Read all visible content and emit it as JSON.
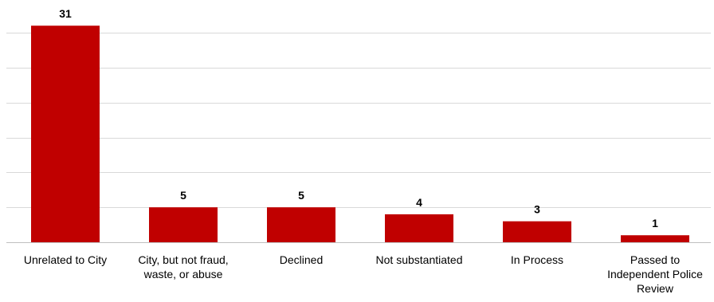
{
  "chart_data": {
    "type": "bar",
    "title": "",
    "xlabel": "",
    "ylabel": "",
    "categories": [
      "Unrelated to City",
      "City, but not fraud, waste, or abuse",
      "Declined",
      "Not substantiated",
      "In Process",
      "Passed to Independent Police Review"
    ],
    "category_lines": [
      [
        "Unrelated to City"
      ],
      [
        "City, but not fraud,",
        "waste, or abuse"
      ],
      [
        "Declined"
      ],
      [
        "Not substantiated"
      ],
      [
        "In Process"
      ],
      [
        "Passed to",
        "Independent Police",
        "Review"
      ]
    ],
    "values": [
      31,
      5,
      5,
      4,
      3,
      1
    ],
    "ylim": [
      0,
      30
    ],
    "grid": true,
    "y_gridline_step": 5,
    "y_axis_labels_shown": false,
    "legend": "none",
    "bar_color": "#c00000",
    "data_labels": true
  }
}
